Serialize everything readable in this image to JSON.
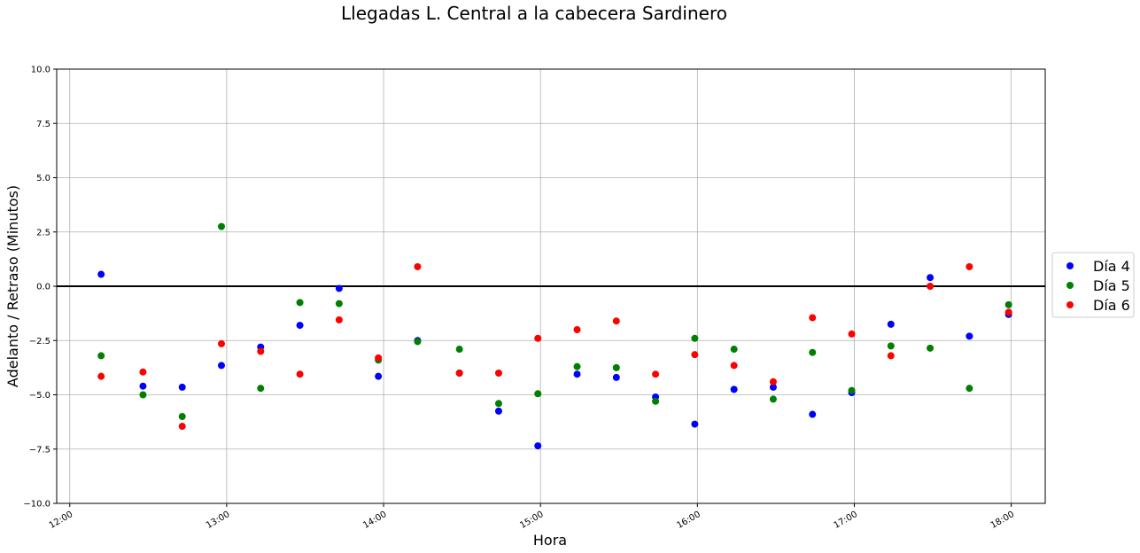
{
  "chart_data": {
    "type": "scatter",
    "title": "Llegadas L. Central a la cabecera Sardinero",
    "xlabel": "Hora",
    "ylabel": "Adelanto / Retraso (Minutos)",
    "xlim": [
      "11:55",
      "18:13"
    ],
    "ylim": [
      -10,
      10
    ],
    "x_ticks": [
      "12:00",
      "13:00",
      "14:00",
      "15:00",
      "16:00",
      "17:00",
      "18:00"
    ],
    "y_ticks": [
      "10.0",
      "7.5",
      "5.0",
      "2.5",
      "0.0",
      "−2.5",
      "−5.0",
      "−7.5",
      "−10.0"
    ],
    "grid": true,
    "reference_line_y": 0,
    "legend_position": "right",
    "series": [
      {
        "name": "Día 4",
        "color": "#0000ff",
        "points": [
          [
            "12:12",
            0.55
          ],
          [
            "12:28",
            -4.6
          ],
          [
            "12:43",
            -4.65
          ],
          [
            "12:58",
            -3.65
          ],
          [
            "13:13",
            -2.8
          ],
          [
            "13:28",
            -1.8
          ],
          [
            "13:43",
            -0.1
          ],
          [
            "13:58",
            -4.15
          ],
          [
            "14:13",
            -2.5
          ],
          [
            "14:29",
            -4.0
          ],
          [
            "14:44",
            -5.75
          ],
          [
            "14:59",
            -7.35
          ],
          [
            "15:14",
            -4.05
          ],
          [
            "15:29",
            -4.2
          ],
          [
            "15:44",
            -5.1
          ],
          [
            "15:59",
            -6.35
          ],
          [
            "16:14",
            -4.75
          ],
          [
            "16:29",
            -4.65
          ],
          [
            "16:44",
            -5.9
          ],
          [
            "16:59",
            -4.9
          ],
          [
            "17:14",
            -1.75
          ],
          [
            "17:29",
            0.4
          ],
          [
            "17:44",
            -2.3
          ],
          [
            "17:59",
            -1.3
          ]
        ]
      },
      {
        "name": "Día 5",
        "color": "#008000",
        "points": [
          [
            "12:12",
            -3.2
          ],
          [
            "12:28",
            -5.0
          ],
          [
            "12:43",
            -6.0
          ],
          [
            "12:58",
            2.75
          ],
          [
            "13:13",
            -4.7
          ],
          [
            "13:28",
            -0.75
          ],
          [
            "13:43",
            -0.8
          ],
          [
            "13:58",
            -3.4
          ],
          [
            "14:13",
            -2.55
          ],
          [
            "14:29",
            -2.9
          ],
          [
            "14:44",
            -5.4
          ],
          [
            "14:59",
            -4.95
          ],
          [
            "15:14",
            -3.7
          ],
          [
            "15:29",
            -3.75
          ],
          [
            "15:44",
            -5.3
          ],
          [
            "15:59",
            -2.4
          ],
          [
            "16:14",
            -2.9
          ],
          [
            "16:29",
            -5.2
          ],
          [
            "16:44",
            -3.05
          ],
          [
            "16:59",
            -4.8
          ],
          [
            "17:14",
            -2.75
          ],
          [
            "17:29",
            -2.85
          ],
          [
            "17:44",
            -4.7
          ],
          [
            "17:59",
            -0.85
          ]
        ]
      },
      {
        "name": "Día 6",
        "color": "#ff0000",
        "points": [
          [
            "12:12",
            -4.15
          ],
          [
            "12:28",
            -3.95
          ],
          [
            "12:43",
            -6.45
          ],
          [
            "12:58",
            -2.65
          ],
          [
            "13:13",
            -3.0
          ],
          [
            "13:28",
            -4.05
          ],
          [
            "13:43",
            -1.55
          ],
          [
            "13:58",
            -3.3
          ],
          [
            "14:13",
            0.9
          ],
          [
            "14:29",
            -4.0
          ],
          [
            "14:44",
            -4.0
          ],
          [
            "14:59",
            -2.4
          ],
          [
            "15:14",
            -2.0
          ],
          [
            "15:29",
            -1.6
          ],
          [
            "15:44",
            -4.05
          ],
          [
            "15:59",
            -3.15
          ],
          [
            "16:14",
            -3.65
          ],
          [
            "16:29",
            -4.4
          ],
          [
            "16:44",
            -1.45
          ],
          [
            "16:59",
            -2.2
          ],
          [
            "17:14",
            -3.2
          ],
          [
            "17:29",
            0.0
          ],
          [
            "17:44",
            0.9
          ],
          [
            "17:59",
            -1.2
          ]
        ]
      }
    ]
  }
}
